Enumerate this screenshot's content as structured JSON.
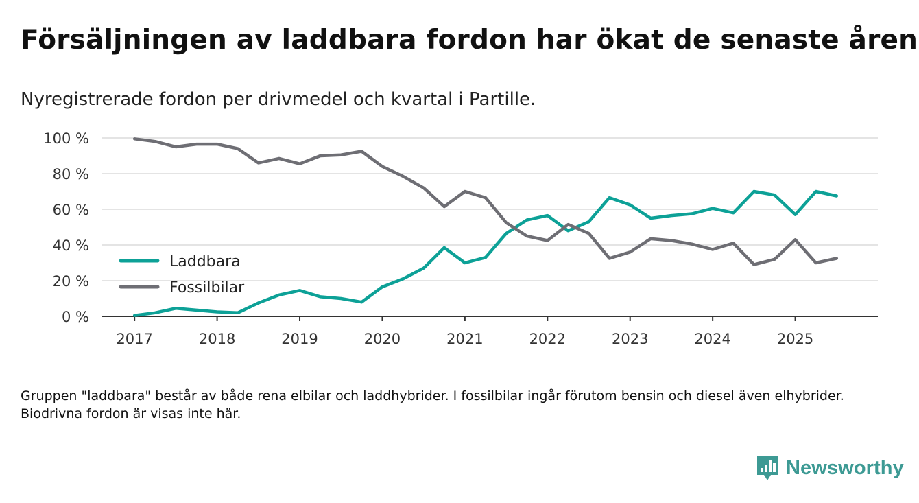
{
  "title": "Försäljningen av laddbara fordon har ökat de senaste åren",
  "subtitle": "Nyregistrerade fordon per drivmedel och kvartal i Partille.",
  "footnote": "Gruppen \"laddbara\" består av både rena elbilar och laddhybrider. I fossilbilar ingår förutom bensin och diesel även elhybrider. Biodrivna fordon är visas inte här.",
  "brand": {
    "name": "Newsworthy",
    "icon": "newsworthy-logo-icon",
    "color": "#3d9a94"
  },
  "chart_data": {
    "type": "line",
    "title": "Försäljningen av laddbara fordon har ökat de senaste åren",
    "xlabel": "",
    "ylabel": "",
    "xlim": [
      2016.6,
      2026.0
    ],
    "ylim": [
      0,
      100
    ],
    "grid": true,
    "legend_position": "middle-left",
    "x_ticks": [
      2017,
      2018,
      2019,
      2020,
      2021,
      2022,
      2023,
      2024,
      2025
    ],
    "x_tick_labels": [
      "2017",
      "2018",
      "2019",
      "2020",
      "2021",
      "2022",
      "2023",
      "2024",
      "2025"
    ],
    "y_ticks": [
      0,
      20,
      40,
      60,
      80,
      100
    ],
    "y_tick_labels": [
      "0 %",
      "20 %",
      "40 %",
      "60 %",
      "80 %",
      "100 %"
    ],
    "x": [
      2017.0,
      2017.25,
      2017.5,
      2017.75,
      2018.0,
      2018.25,
      2018.5,
      2018.75,
      2019.0,
      2019.25,
      2019.5,
      2019.75,
      2020.0,
      2020.25,
      2020.5,
      2020.75,
      2021.0,
      2021.25,
      2021.5,
      2021.75,
      2022.0,
      2022.25,
      2022.5,
      2022.75,
      2023.0,
      2023.25,
      2023.5,
      2023.75,
      2024.0,
      2024.25,
      2024.5,
      2024.75,
      2025.0,
      2025.25,
      2025.5
    ],
    "series": [
      {
        "name": "Laddbara",
        "color": "#0da197",
        "values": [
          0.5,
          2,
          4.5,
          3.5,
          2.5,
          2,
          7.5,
          12,
          14.5,
          11,
          10,
          8,
          16.5,
          21,
          27,
          38.5,
          30,
          33,
          46.5,
          54,
          56.5,
          48,
          53,
          66.5,
          62.5,
          55,
          56.5,
          57.5,
          60.5,
          58,
          70,
          68,
          57,
          70,
          67.5
        ]
      },
      {
        "name": "Fossilbilar",
        "color": "#6e6e74",
        "values": [
          99.5,
          98,
          95,
          96.5,
          96.5,
          94,
          86,
          88.5,
          85.5,
          90,
          90.5,
          92.5,
          84,
          78.5,
          72,
          61.5,
          70,
          66.5,
          52.5,
          45,
          42.5,
          51.5,
          46.5,
          32.5,
          36,
          43.5,
          42.5,
          40.5,
          37.5,
          41,
          29,
          32,
          43,
          30,
          32.5
        ]
      }
    ]
  }
}
